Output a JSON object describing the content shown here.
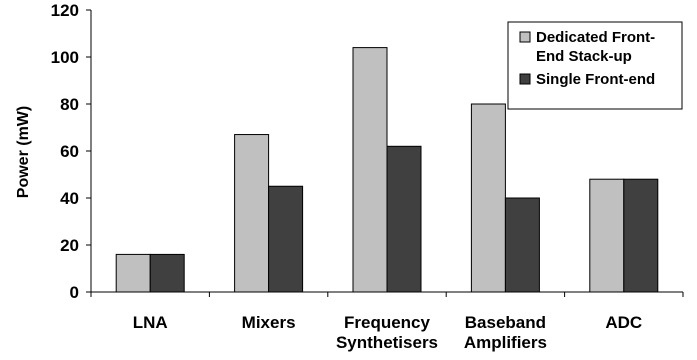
{
  "chart_data": {
    "type": "bar",
    "categories": [
      [
        "LNA"
      ],
      [
        "Mixers"
      ],
      [
        "Frequency",
        "Synthetisers"
      ],
      [
        "Baseband",
        "Amplifiers"
      ],
      [
        "ADC"
      ]
    ],
    "series": [
      {
        "name": [
          "Dedicated Front-",
          "End Stack-up"
        ],
        "color": "#c0c0c0",
        "values": [
          16,
          67,
          104,
          80,
          48
        ]
      },
      {
        "name": [
          "Single Front-end"
        ],
        "color": "#404040",
        "values": [
          16,
          45,
          62,
          40,
          48
        ]
      }
    ],
    "title": "",
    "xlabel": "",
    "ylabel": "Power (mW)",
    "ylim": [
      0,
      120
    ],
    "yticks": [
      0,
      20,
      40,
      60,
      80,
      100,
      120
    ],
    "grid": false,
    "legend_position": "top-right"
  }
}
